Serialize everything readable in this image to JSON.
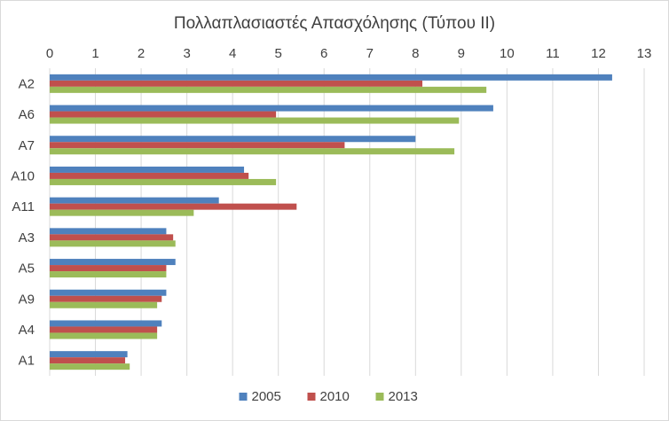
{
  "chart_data": {
    "type": "bar",
    "orientation": "horizontal",
    "title": "Πολλαπλασιαστές Απασχόλησης (Τύπου ΙΙ)",
    "xlabel": "",
    "ylabel": "",
    "xlim": [
      0,
      13
    ],
    "x_ticks": [
      0,
      1,
      2,
      3,
      4,
      5,
      6,
      7,
      8,
      9,
      10,
      11,
      12,
      13
    ],
    "x_axis_position": "top",
    "grid": true,
    "legend_position": "bottom",
    "categories": [
      "A2",
      "A6",
      "A7",
      "A10",
      "A11",
      "A3",
      "A5",
      "A9",
      "A4",
      "A1"
    ],
    "series": [
      {
        "name": "2005",
        "color": "#4F81BD",
        "values": [
          12.3,
          9.7,
          8.0,
          4.25,
          3.7,
          2.55,
          2.75,
          2.55,
          2.45,
          1.7
        ]
      },
      {
        "name": "2010",
        "color": "#C0504D",
        "values": [
          8.15,
          4.95,
          6.45,
          4.35,
          5.4,
          2.7,
          2.55,
          2.45,
          2.35,
          1.65
        ]
      },
      {
        "name": "2013",
        "color": "#9BBB59",
        "values": [
          9.55,
          8.95,
          8.85,
          4.95,
          3.15,
          2.75,
          2.55,
          2.35,
          2.35,
          1.75
        ]
      }
    ]
  }
}
